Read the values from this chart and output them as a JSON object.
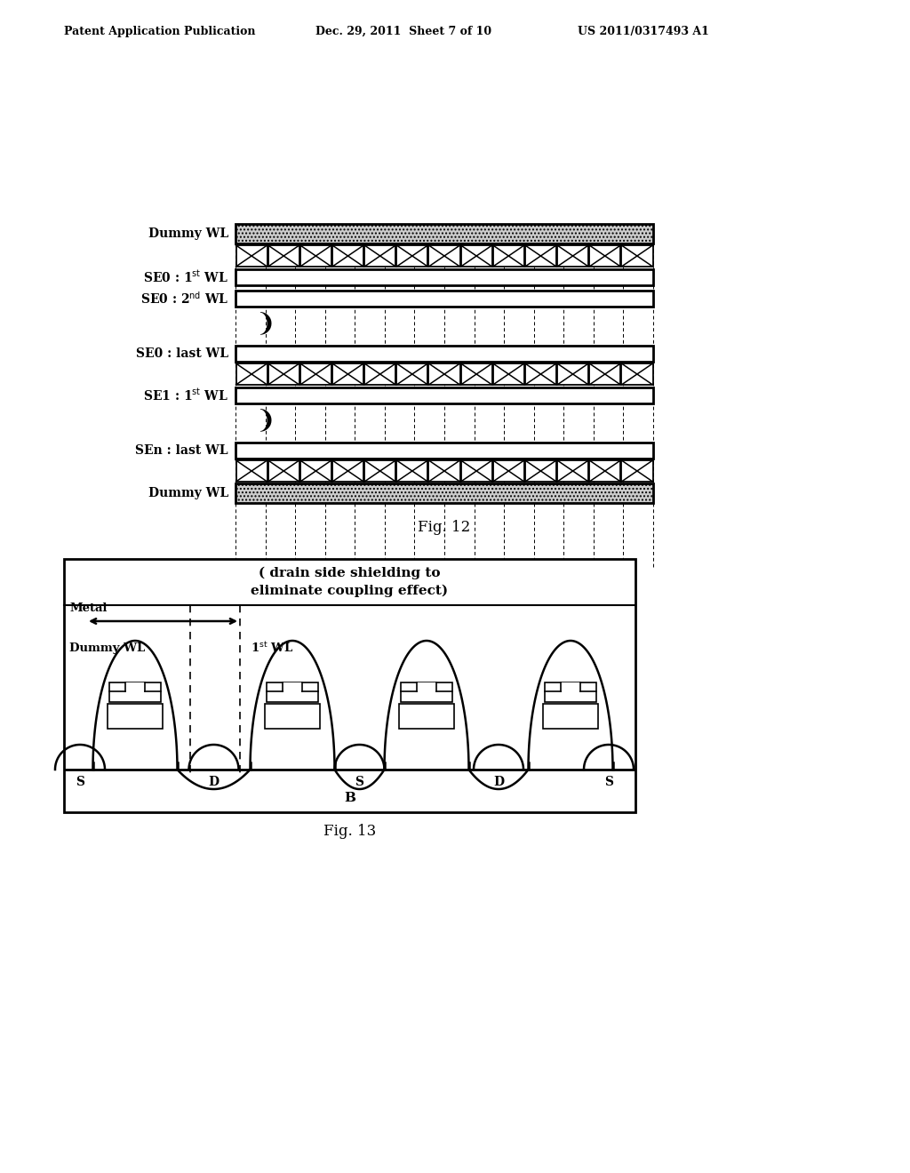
{
  "header_left": "Patent Application Publication",
  "header_mid": "Dec. 29, 2011  Sheet 7 of 10",
  "header_right": "US 2011/0317493 A1",
  "fig12_caption": "Fig. 12",
  "fig13_caption": "Fig. 13",
  "bg_color": "#ffffff"
}
